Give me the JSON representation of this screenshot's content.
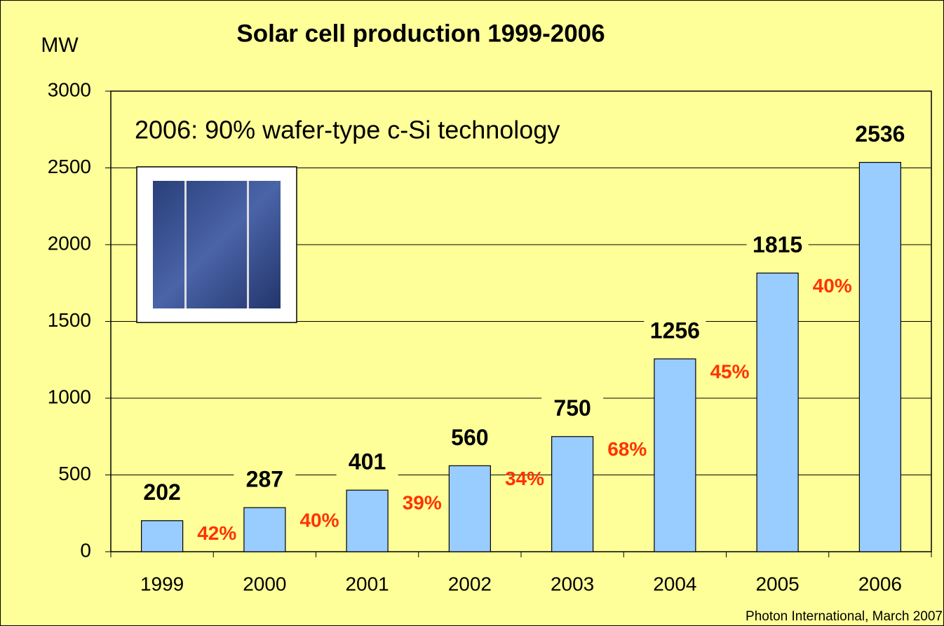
{
  "chart_data": {
    "type": "bar",
    "title": "Solar cell production 1999-2006",
    "y_label": "MW",
    "categories": [
      "1999",
      "2000",
      "2001",
      "2002",
      "2003",
      "2004",
      "2005",
      "2006"
    ],
    "values": [
      202,
      287,
      401,
      560,
      750,
      1256,
      1815,
      2536
    ],
    "color": "#99ccff",
    "ylim": [
      0,
      3000
    ],
    "yticks": [
      0,
      500,
      1000,
      1500,
      2000,
      2500,
      3000
    ],
    "grid": true,
    "growth_labels": [
      "42%",
      "40%",
      "39%",
      "34%",
      "68%",
      "45%",
      "40%"
    ],
    "annotation": "2006: 90% wafer-type c-Si technology",
    "source": "Photon International, March 2007"
  }
}
